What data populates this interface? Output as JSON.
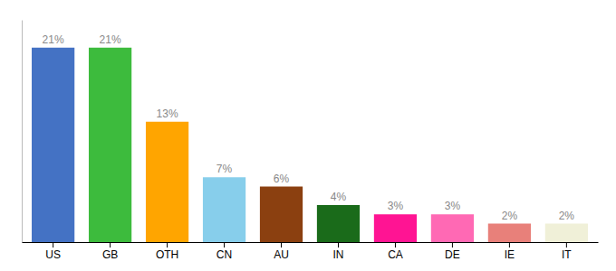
{
  "chart_data": {
    "type": "bar",
    "categories": [
      "US",
      "GB",
      "OTH",
      "CN",
      "AU",
      "IN",
      "CA",
      "DE",
      "IE",
      "IT"
    ],
    "values": [
      21,
      21,
      13,
      7,
      6,
      4,
      3,
      3,
      2,
      2
    ],
    "value_labels": [
      "21%",
      "21%",
      "13%",
      "7%",
      "6%",
      "4%",
      "3%",
      "3%",
      "2%",
      "2%"
    ],
    "colors": [
      "#4472c4",
      "#3dbb3d",
      "#ffa500",
      "#87ceeb",
      "#8b4010",
      "#1a6b1a",
      "#ff1493",
      "#ff69b4",
      "#e8807a",
      "#f0f0d8"
    ],
    "ylim": [
      0,
      24
    ],
    "data_labels": true,
    "tick_labels": "x",
    "grid": false
  }
}
